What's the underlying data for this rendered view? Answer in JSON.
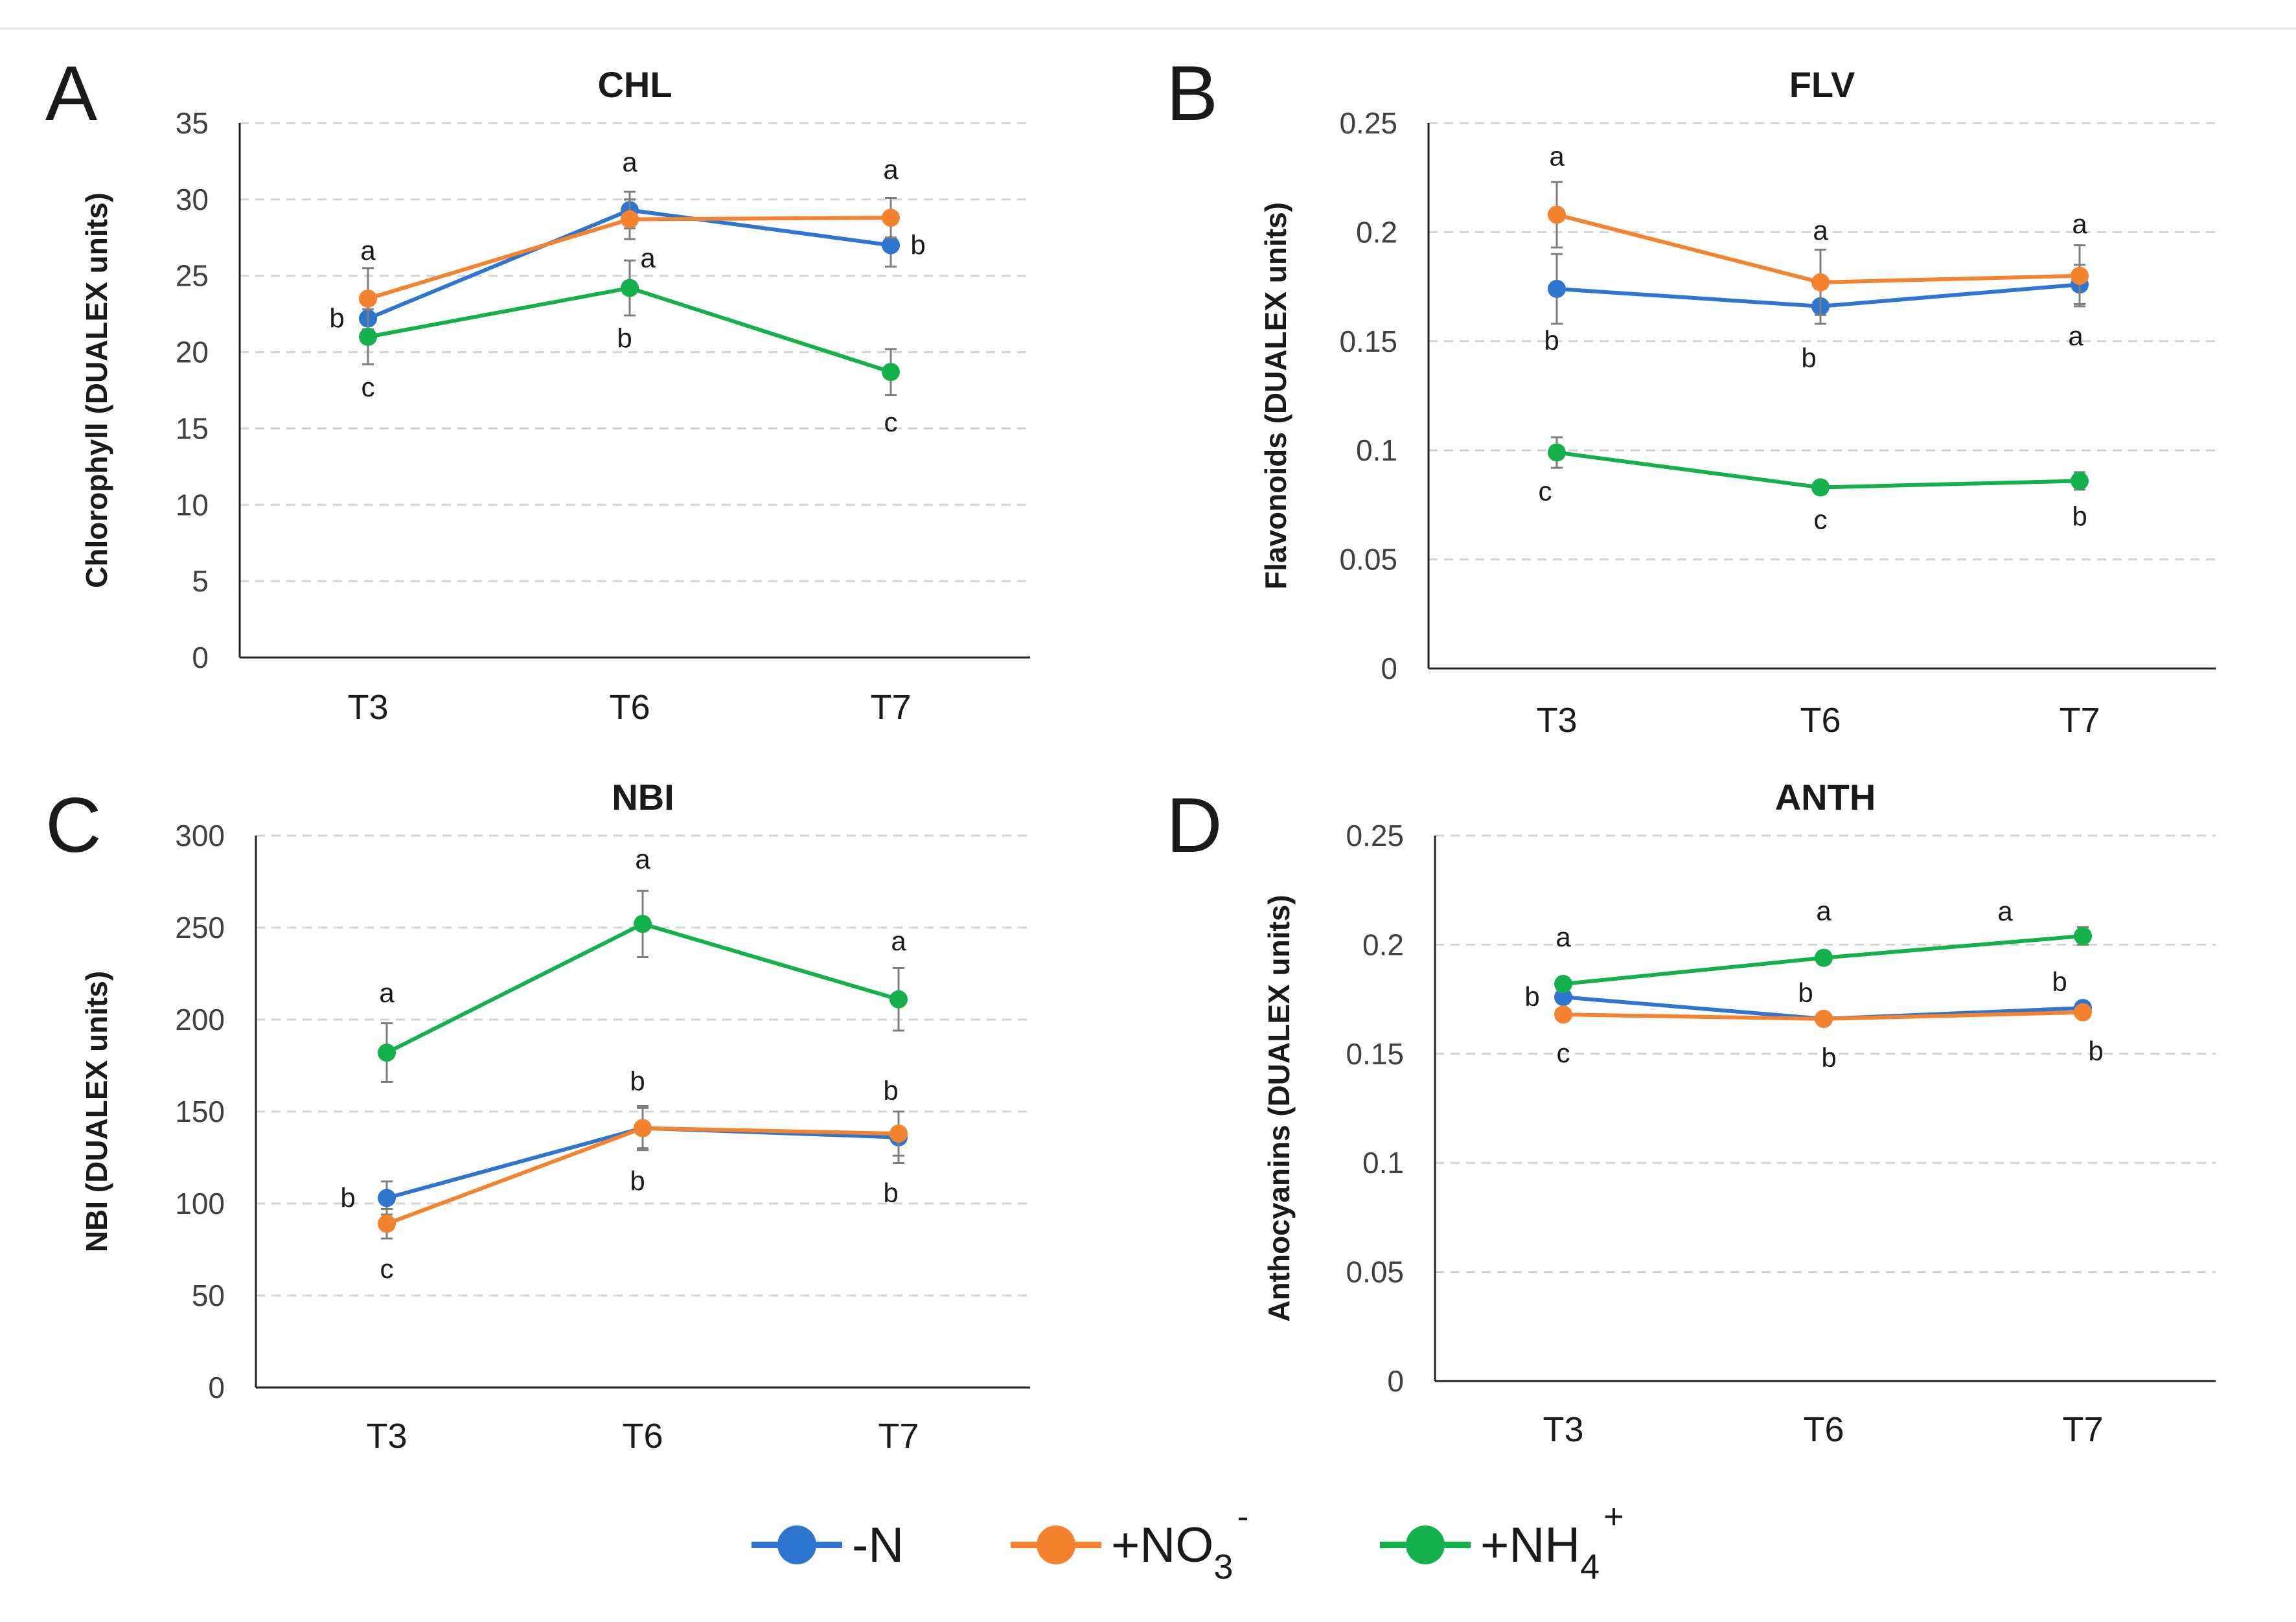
{
  "legend": [
    {
      "key": "N",
      "label": "-N",
      "sub": "",
      "sup": "",
      "color": "#2E75D0"
    },
    {
      "key": "NO3",
      "label": "+NO",
      "sub": "3",
      "sup": "-",
      "color": "#F4822F"
    },
    {
      "key": "NH4",
      "label": "+NH",
      "sub": "4",
      "sup": "+",
      "color": "#14B04C"
    }
  ],
  "chart_data": [
    {
      "panel": "A",
      "type": "line",
      "title": "CHL",
      "ylabel": "Chlorophyll (DUALEX units)",
      "categories": [
        "T3",
        "T6",
        "T7"
      ],
      "ylim": [
        0,
        35
      ],
      "yticks": [
        "0",
        "5",
        "10",
        "15",
        "20",
        "25",
        "30",
        "35"
      ],
      "yticks_values": [
        0,
        5,
        10,
        15,
        20,
        25,
        30,
        35
      ],
      "series": [
        {
          "name": "-N",
          "color": "#2E75D0",
          "values": [
            22.2,
            29.3,
            27.0
          ],
          "err": [
            1.6,
            1.2,
            1.4
          ],
          "letters": [
            "b",
            "a",
            "b"
          ]
        },
        {
          "name": "+NO3-",
          "color": "#F4822F",
          "values": [
            23.5,
            28.7,
            28.8
          ],
          "err": [
            2.0,
            1.3,
            1.3
          ],
          "letters": [
            "a",
            "a",
            "a"
          ]
        },
        {
          "name": "+NH4+",
          "color": "#14B04C",
          "values": [
            21.0,
            24.2,
            18.7
          ],
          "err": [
            1.8,
            1.8,
            1.5
          ],
          "letters": [
            "c",
            "b",
            "c"
          ]
        }
      ]
    },
    {
      "panel": "B",
      "type": "line",
      "title": "FLV",
      "ylabel": "Flavonoids  (DUALEX units)",
      "categories": [
        "T3",
        "T6",
        "T7"
      ],
      "ylim": [
        0,
        0.25
      ],
      "yticks": [
        "0",
        "0.05",
        "0.1",
        "0.15",
        "0.2",
        "0.25"
      ],
      "yticks_values": [
        0,
        0.05,
        0.1,
        0.15,
        0.2,
        0.25
      ],
      "series": [
        {
          "name": "-N",
          "color": "#2E75D0",
          "values": [
            0.174,
            0.166,
            0.176
          ],
          "err": [
            0.016,
            0.008,
            0.009
          ],
          "letters": [
            "b",
            "b",
            "a"
          ]
        },
        {
          "name": "+NO3-",
          "color": "#F4822F",
          "values": [
            0.208,
            0.177,
            0.18
          ],
          "err": [
            0.015,
            0.015,
            0.014
          ],
          "letters": [
            "a",
            "a",
            "a"
          ]
        },
        {
          "name": "+NH4+",
          "color": "#14B04C",
          "values": [
            0.099,
            0.083,
            0.086
          ],
          "err": [
            0.007,
            0.003,
            0.004
          ],
          "letters": [
            "c",
            "c",
            "b"
          ]
        }
      ]
    },
    {
      "panel": "C",
      "type": "line",
      "title": "NBI",
      "ylabel": "NBI (DUALEX units)",
      "categories": [
        "T3",
        "T6",
        "T7"
      ],
      "ylim": [
        0,
        300
      ],
      "yticks": [
        "0",
        "50",
        "100",
        "150",
        "200",
        "250",
        "300"
      ],
      "yticks_values": [
        0,
        50,
        100,
        150,
        200,
        250,
        300
      ],
      "series": [
        {
          "name": "-N",
          "color": "#2E75D0",
          "values": [
            103,
            141,
            136
          ],
          "err": [
            9,
            12,
            14
          ],
          "letters": [
            "b",
            "b",
            "b"
          ]
        },
        {
          "name": "+NO3-",
          "color": "#F4822F",
          "values": [
            89,
            141,
            138
          ],
          "err": [
            8,
            11,
            12
          ],
          "letters": [
            "c",
            "b",
            "b"
          ]
        },
        {
          "name": "+NH4+",
          "color": "#14B04C",
          "values": [
            182,
            252,
            211
          ],
          "err": [
            16,
            18,
            17
          ],
          "letters": [
            "a",
            "a",
            "a"
          ]
        }
      ]
    },
    {
      "panel": "D",
      "type": "line",
      "title": "ANTH",
      "ylabel": "Anthocyanins (DUALEX units)",
      "categories": [
        "T3",
        "T6",
        "T7"
      ],
      "ylim": [
        0,
        0.25
      ],
      "yticks": [
        "0",
        "0.05",
        "0.1",
        "0.15",
        "0.2",
        "0.25"
      ],
      "yticks_values": [
        0,
        0.05,
        0.1,
        0.15,
        0.2,
        0.25
      ],
      "series": [
        {
          "name": "-N",
          "color": "#2E75D0",
          "values": [
            0.176,
            0.166,
            0.171
          ],
          "err": [
            0.002,
            0.002,
            0.002
          ],
          "letters": [
            "b",
            "b",
            "b"
          ]
        },
        {
          "name": "+NO3-",
          "color": "#F4822F",
          "values": [
            0.168,
            0.166,
            0.169
          ],
          "err": [
            0.002,
            0.002,
            0.002
          ],
          "letters": [
            "c",
            "b",
            "b"
          ]
        },
        {
          "name": "+NH4+",
          "color": "#14B04C",
          "values": [
            0.182,
            0.194,
            0.204
          ],
          "err": [
            0.003,
            0.003,
            0.004
          ],
          "letters": [
            "a",
            "a",
            "a"
          ]
        }
      ]
    }
  ]
}
